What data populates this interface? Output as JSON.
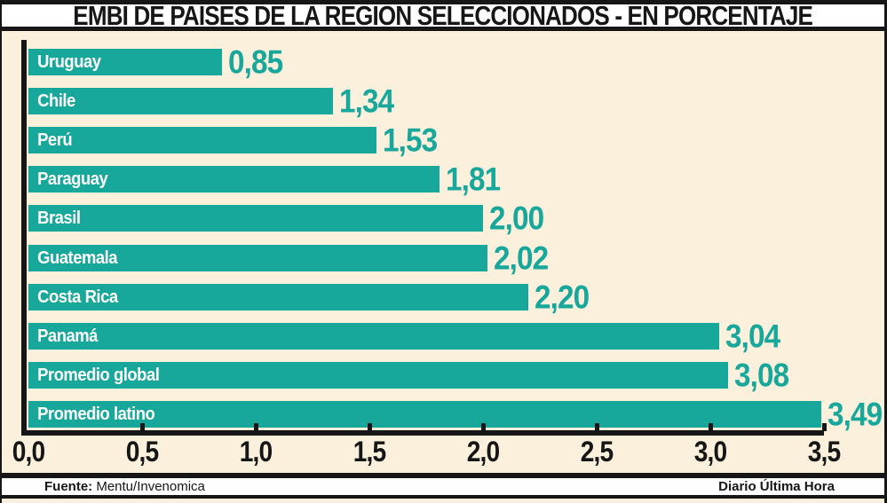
{
  "title": "EMBI DE PAÍSES DE LA REGIÓN SELECCIONADOS - EN PORCENTAJE",
  "chart_data": {
    "type": "bar",
    "orientation": "horizontal",
    "categories": [
      "Uruguay",
      "Chile",
      "Perú",
      "Paraguay",
      "Brasil",
      "Guatemala",
      "Costa Rica",
      "Panamá",
      "Promedio global",
      "Promedio latino"
    ],
    "values": [
      0.85,
      1.34,
      1.53,
      1.81,
      2.0,
      2.02,
      2.2,
      3.04,
      3.08,
      3.49
    ],
    "value_labels": [
      "0,85",
      "1,34",
      "1,53",
      "1,81",
      "2,00",
      "2,02",
      "2,20",
      "3,04",
      "3,08",
      "3,49"
    ],
    "x_tick_labels": [
      "0,0",
      "0,5",
      "1,0",
      "1,5",
      "2,0",
      "2,5",
      "3,0",
      "3,5"
    ],
    "x_tick_values": [
      0,
      0.5,
      1.0,
      1.5,
      2.0,
      2.5,
      3.0,
      3.5
    ],
    "xlim": [
      0,
      3.5
    ],
    "xlabel": "",
    "ylabel": "",
    "grid": false,
    "legend": false,
    "bar_color": "#17a89b",
    "background_color": "#fbf0dc",
    "axis_color": "#161616",
    "value_label_color": "#17a89b",
    "bar_label_color": "#ffffff"
  },
  "footer": {
    "source_label": "Fuente:",
    "source_value": " Mentu/Invenomica",
    "credit": "Diario Última Hora"
  }
}
